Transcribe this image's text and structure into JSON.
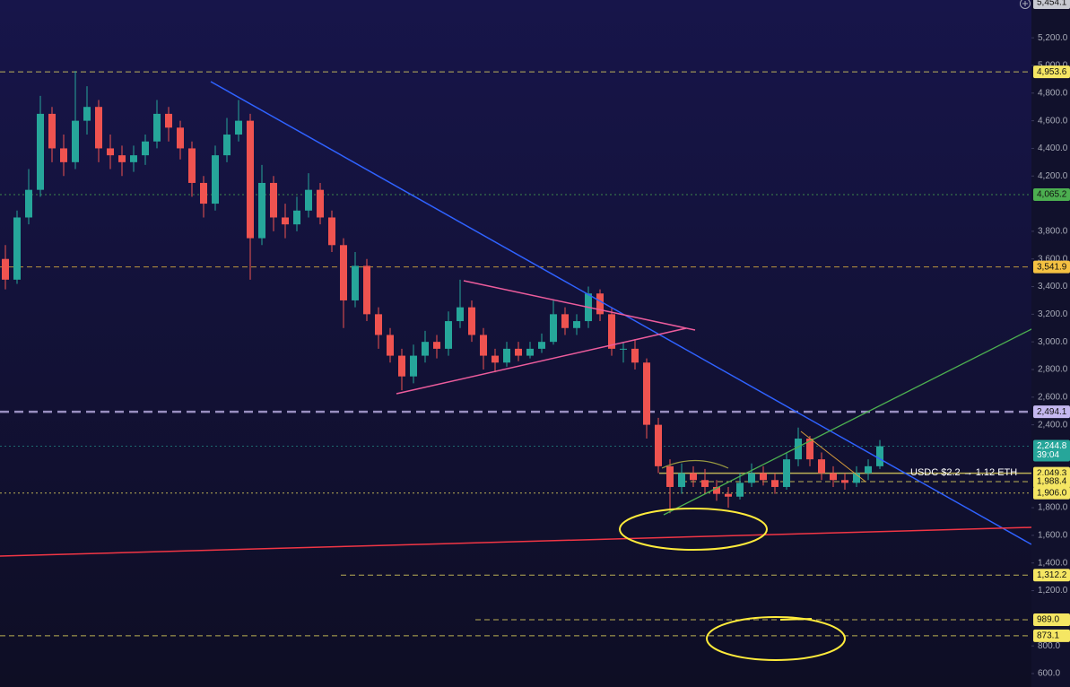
{
  "chart_data": {
    "type": "candlestick",
    "ylim": [
      5454.1,
      600
    ],
    "yticks": [
      {
        "value": 600,
        "label": "600.0"
      },
      {
        "value": 800,
        "label": "800.0"
      },
      {
        "value": 1200,
        "label": "1,200.0"
      },
      {
        "value": 1400,
        "label": "1,400.0"
      },
      {
        "value": 1600,
        "label": "1,600.0"
      },
      {
        "value": 1800,
        "label": "1,800.0"
      },
      {
        "value": 2400,
        "label": "2,400.0"
      },
      {
        "value": 2600,
        "label": "2,600.0"
      },
      {
        "value": 2800,
        "label": "2,800.0"
      },
      {
        "value": 3000,
        "label": "3,000.0"
      },
      {
        "value": 3200,
        "label": "3,200.0"
      },
      {
        "value": 3400,
        "label": "3,400.0"
      },
      {
        "value": 3600,
        "label": "3,600.0"
      },
      {
        "value": 3800,
        "label": "3,800.0"
      },
      {
        "value": 4200,
        "label": "4,200.0"
      },
      {
        "value": 4400,
        "label": "4,400.0"
      },
      {
        "value": 4600,
        "label": "4,600.0"
      },
      {
        "value": 4800,
        "label": "4,800.0"
      },
      {
        "value": 5000,
        "label": "5,000.0"
      },
      {
        "value": 5200,
        "label": "5,200.0"
      }
    ],
    "up_color": "#26a69a",
    "down_color": "#ef5350",
    "ohlc": [
      [
        3600,
        3700,
        3380,
        3450
      ],
      [
        3450,
        3950,
        3420,
        3900
      ],
      [
        3900,
        4250,
        3850,
        4100
      ],
      [
        4100,
        4780,
        4050,
        4650
      ],
      [
        4650,
        4700,
        4300,
        4400
      ],
      [
        4400,
        4500,
        4200,
        4300
      ],
      [
        4300,
        4960,
        4250,
        4600
      ],
      [
        4600,
        4850,
        4500,
        4700
      ],
      [
        4700,
        4750,
        4300,
        4400
      ],
      [
        4400,
        4500,
        4250,
        4350
      ],
      [
        4350,
        4420,
        4200,
        4300
      ],
      [
        4300,
        4420,
        4230,
        4350
      ],
      [
        4350,
        4500,
        4280,
        4450
      ],
      [
        4450,
        4750,
        4400,
        4650
      ],
      [
        4650,
        4700,
        4450,
        4550
      ],
      [
        4550,
        4600,
        4320,
        4400
      ],
      [
        4400,
        4450,
        4050,
        4150
      ],
      [
        4150,
        4200,
        3900,
        4000
      ],
      [
        4000,
        4420,
        3950,
        4350
      ],
      [
        4350,
        4620,
        4300,
        4500
      ],
      [
        4500,
        4750,
        4450,
        4600
      ],
      [
        4600,
        4650,
        3450,
        3750
      ],
      [
        3750,
        4280,
        3700,
        4150
      ],
      [
        4150,
        4200,
        3800,
        3900
      ],
      [
        3900,
        4000,
        3750,
        3850
      ],
      [
        3850,
        4050,
        3800,
        3950
      ],
      [
        3950,
        4220,
        3900,
        4100
      ],
      [
        4100,
        4150,
        3850,
        3900
      ],
      [
        3900,
        3950,
        3650,
        3700
      ],
      [
        3700,
        3750,
        3100,
        3300
      ],
      [
        3300,
        3650,
        3250,
        3550
      ],
      [
        3550,
        3600,
        3150,
        3200
      ],
      [
        3200,
        3250,
        2950,
        3050
      ],
      [
        3050,
        3100,
        2850,
        2900
      ],
      [
        2900,
        2950,
        2650,
        2750
      ],
      [
        2750,
        2980,
        2700,
        2900
      ],
      [
        2900,
        3080,
        2850,
        3000
      ],
      [
        3000,
        3050,
        2880,
        2950
      ],
      [
        2950,
        3220,
        2900,
        3150
      ],
      [
        3150,
        3450,
        3100,
        3250
      ],
      [
        3250,
        3300,
        3000,
        3050
      ],
      [
        3050,
        3100,
        2800,
        2900
      ],
      [
        2900,
        2950,
        2780,
        2850
      ],
      [
        2850,
        3000,
        2820,
        2950
      ],
      [
        2950,
        3000,
        2860,
        2900
      ],
      [
        2900,
        3000,
        2880,
        2950
      ],
      [
        2950,
        3060,
        2920,
        3000
      ],
      [
        3000,
        3300,
        2980,
        3200
      ],
      [
        3200,
        3250,
        3050,
        3100
      ],
      [
        3100,
        3200,
        3050,
        3150
      ],
      [
        3150,
        3400,
        3100,
        3350
      ],
      [
        3350,
        3380,
        3150,
        3200
      ],
      [
        3200,
        3250,
        2900,
        2950
      ],
      [
        2950,
        3000,
        2850,
        2950
      ],
      [
        2950,
        3020,
        2800,
        2850
      ],
      [
        2850,
        2880,
        2300,
        2400
      ],
      [
        2400,
        2450,
        2050,
        2100
      ],
      [
        2100,
        2150,
        1760,
        1950
      ],
      [
        1950,
        2120,
        1900,
        2050
      ],
      [
        2050,
        2100,
        1950,
        2000
      ],
      [
        2000,
        2080,
        1900,
        1950
      ],
      [
        1950,
        2000,
        1850,
        1900
      ],
      [
        1900,
        1950,
        1800,
        1880
      ],
      [
        1880,
        2050,
        1860,
        1980
      ],
      [
        1980,
        2120,
        1950,
        2050
      ],
      [
        2050,
        2100,
        1960,
        2000
      ],
      [
        2000,
        2050,
        1900,
        1950
      ],
      [
        1950,
        2200,
        1930,
        2150
      ],
      [
        2150,
        2380,
        2100,
        2300
      ],
      [
        2300,
        2320,
        2100,
        2150
      ],
      [
        2150,
        2200,
        2000,
        2050
      ],
      [
        2050,
        2100,
        1950,
        2000
      ],
      [
        2000,
        2050,
        1930,
        1980
      ],
      [
        1980,
        2100,
        1950,
        2050
      ],
      [
        2050,
        2150,
        2000,
        2100
      ],
      [
        2100,
        2290,
        2080,
        2244.8
      ]
    ],
    "price_levels": [
      {
        "value": 5454.1,
        "label": "5,454.1",
        "color": "#c8cad2",
        "style": "none"
      },
      {
        "value": 4953.6,
        "label": "4,953.6",
        "color": "#f5e663",
        "style": "dashed"
      },
      {
        "value": 4065.2,
        "label": "4,065.2",
        "color": "#4caf50",
        "style": "dotted"
      },
      {
        "value": 3541.9,
        "label": "3,541.9",
        "color": "#f5c242",
        "style": "dashed"
      },
      {
        "value": 2494.1,
        "label": "2,494.1",
        "color": "#c5b8f0",
        "style": "bold-dashed"
      },
      {
        "value": 2244.8,
        "label": "2,244.8",
        "color": "#26a69a",
        "style": "dotted",
        "countdown": "39:04"
      },
      {
        "value": 2049.3,
        "label": "2,049.3",
        "color": "#f5e663",
        "style": "solid"
      },
      {
        "value": 1988.4,
        "label": "1,988.4",
        "color": "#f5e663",
        "style": "dashed"
      },
      {
        "value": 1906.0,
        "label": "1,906.0",
        "color": "#f5e663",
        "style": "dotted"
      },
      {
        "value": 1312.2,
        "label": "1,312.2",
        "color": "#f5e663",
        "style": "dashed"
      },
      {
        "value": 989.0,
        "label": "989.0",
        "color": "#f5e663",
        "style": "dashed"
      },
      {
        "value": 873.1,
        "label": "873.1",
        "color": "#f5e663",
        "style": "dashed"
      }
    ],
    "annotation": "USDC $2.2 → 1.12 ETH"
  }
}
